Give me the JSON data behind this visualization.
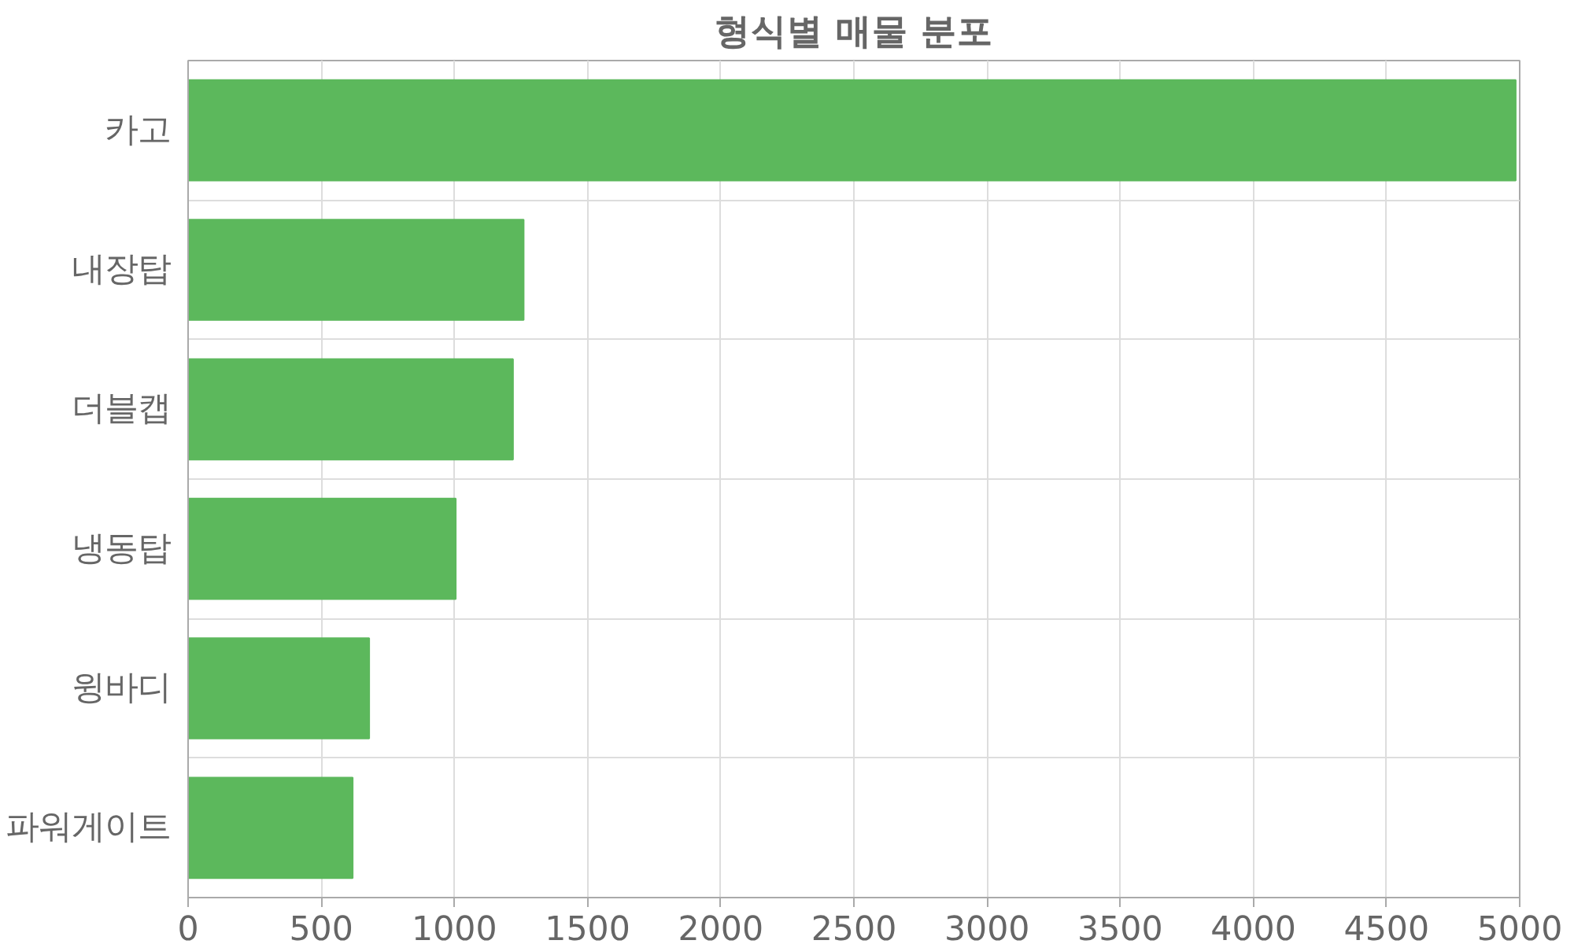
{
  "chart_data": {
    "type": "bar",
    "orientation": "horizontal",
    "title": "형식별 매물 분포",
    "categories": [
      "카고",
      "내장탑",
      "더블캡",
      "냉동탑",
      "윙바디",
      "파워게이트"
    ],
    "values": [
      4985,
      1260,
      1220,
      1005,
      680,
      618
    ],
    "color": "#5cb85c",
    "xlim": [
      0,
      5000
    ],
    "xticks": [
      0,
      500,
      1000,
      1500,
      2000,
      2500,
      3000,
      3500,
      4000,
      4500,
      5000
    ],
    "grid": true
  }
}
